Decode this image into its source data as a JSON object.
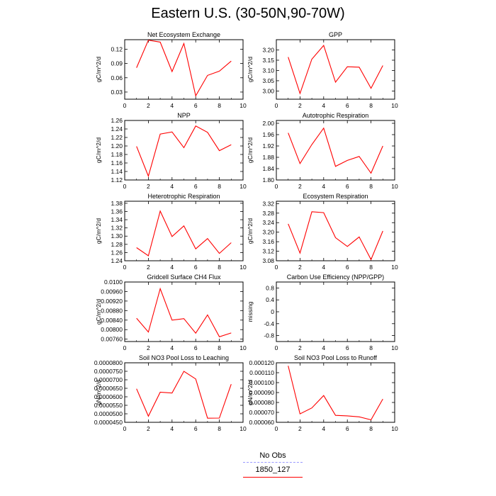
{
  "title": "Eastern U.S. (30-50N,90-70W)",
  "colors": {
    "series": "#ff0000",
    "obs": "#9999ff",
    "axis": "#000000"
  },
  "legend": [
    {
      "label": "No Obs",
      "color": "#9999ff",
      "style": "dashed"
    },
    {
      "label": "1850_127",
      "color": "#ff0000",
      "style": "solid"
    }
  ],
  "chart_data": [
    {
      "type": "line",
      "title": "Net Ecosystem Exchange",
      "ylabel": "gC/m^2/d",
      "xlim": [
        0,
        10
      ],
      "ylim": [
        0.015,
        0.14
      ],
      "xticks": [
        "0",
        "2",
        "4",
        "6",
        "8",
        "10"
      ],
      "yticks": [
        "0.03",
        "0.06",
        "0.09",
        "0.12"
      ],
      "x": [
        1,
        2,
        3,
        4,
        5,
        6,
        7,
        8,
        9
      ],
      "series": [
        {
          "name": "1850_127",
          "values": [
            0.081,
            0.139,
            0.135,
            0.073,
            0.132,
            0.022,
            0.065,
            0.074,
            0.095
          ]
        }
      ]
    },
    {
      "type": "line",
      "title": "GPP",
      "ylabel": "gC/m^2/d",
      "xlim": [
        0,
        10
      ],
      "ylim": [
        2.96,
        3.25
      ],
      "xticks": [
        "0",
        "2",
        "4",
        "6",
        "8",
        "10"
      ],
      "yticks": [
        "3.00",
        "3.05",
        "3.10",
        "3.15",
        "3.20"
      ],
      "x": [
        1,
        2,
        3,
        4,
        5,
        6,
        7,
        8,
        9
      ],
      "series": [
        {
          "name": "1850_127",
          "values": [
            3.165,
            2.988,
            3.155,
            3.222,
            3.043,
            3.118,
            3.116,
            3.013,
            3.124
          ]
        }
      ]
    },
    {
      "type": "line",
      "title": "NPP",
      "ylabel": "gC/m^2/d",
      "xlim": [
        0,
        10
      ],
      "ylim": [
        1.12,
        1.26
      ],
      "xticks": [
        "0",
        "2",
        "4",
        "6",
        "8",
        "10"
      ],
      "yticks": [
        "1.12",
        "1.14",
        "1.16",
        "1.18",
        "1.20",
        "1.22",
        "1.24",
        "1.26"
      ],
      "x": [
        1,
        2,
        3,
        4,
        5,
        6,
        7,
        8,
        9
      ],
      "series": [
        {
          "name": "1850_127",
          "values": [
            1.199,
            1.129,
            1.228,
            1.233,
            1.196,
            1.247,
            1.232,
            1.189,
            1.203
          ]
        }
      ]
    },
    {
      "type": "line",
      "title": "Autotrophic Respiration",
      "ylabel": "gC/m^2/d",
      "xlim": [
        0,
        10
      ],
      "ylim": [
        1.8,
        2.01
      ],
      "xticks": [
        "0",
        "2",
        "4",
        "6",
        "8",
        "10"
      ],
      "yticks": [
        "1.80",
        "1.84",
        "1.88",
        "1.92",
        "1.96",
        "2.00"
      ],
      "x": [
        1,
        2,
        3,
        4,
        5,
        6,
        7,
        8,
        9
      ],
      "series": [
        {
          "name": "1850_127",
          "values": [
            1.966,
            1.858,
            1.925,
            1.983,
            1.848,
            1.869,
            1.883,
            1.824,
            1.92
          ]
        }
      ]
    },
    {
      "type": "line",
      "title": "Heterotrophic Respiration",
      "ylabel": "gC/m^2/d",
      "xlim": [
        0,
        10
      ],
      "ylim": [
        1.24,
        1.385
      ],
      "xticks": [
        "0",
        "2",
        "4",
        "6",
        "8",
        "10"
      ],
      "yticks": [
        "1.24",
        "1.26",
        "1.28",
        "1.30",
        "1.32",
        "1.34",
        "1.36",
        "1.38"
      ],
      "x": [
        1,
        2,
        3,
        4,
        5,
        6,
        7,
        8,
        9
      ],
      "series": [
        {
          "name": "1850_127",
          "values": [
            1.272,
            1.252,
            1.361,
            1.299,
            1.325,
            1.269,
            1.294,
            1.258,
            1.284
          ]
        }
      ]
    },
    {
      "type": "line",
      "title": "Ecosystem Respiration",
      "ylabel": "gC/m^2/d",
      "xlim": [
        0,
        10
      ],
      "ylim": [
        3.08,
        3.33
      ],
      "xticks": [
        "0",
        "2",
        "4",
        "6",
        "8",
        "10"
      ],
      "yticks": [
        "3.08",
        "3.12",
        "3.16",
        "3.20",
        "3.24",
        "3.28",
        "3.32"
      ],
      "x": [
        1,
        2,
        3,
        4,
        5,
        6,
        7,
        8,
        9
      ],
      "series": [
        {
          "name": "1850_127",
          "values": [
            3.235,
            3.112,
            3.286,
            3.282,
            3.177,
            3.14,
            3.18,
            3.085,
            3.205
          ]
        }
      ]
    },
    {
      "type": "line",
      "title": "Gridcell Surface CH4 Flux",
      "ylabel": "gC/m^2/d",
      "xlim": [
        0,
        10
      ],
      "ylim": [
        0.0075,
        0.01
      ],
      "xticks": [
        "0",
        "2",
        "4",
        "6",
        "8",
        "10"
      ],
      "yticks": [
        "0.00760",
        "0.00800",
        "0.00840",
        "0.00880",
        "0.00920",
        "0.00960",
        "0.0100"
      ],
      "x": [
        1,
        2,
        3,
        4,
        5,
        6,
        7,
        8,
        9
      ],
      "series": [
        {
          "name": "1850_127",
          "values": [
            0.00848,
            0.0079,
            0.00972,
            0.0084,
            0.00846,
            0.00785,
            0.00862,
            0.0077,
            0.00786
          ]
        }
      ]
    },
    {
      "type": "line",
      "title": "Carbon Use Efficiency (NPP/GPP)",
      "ylabel": "missing",
      "xlim": [
        0,
        10
      ],
      "ylim": [
        -1.0,
        1.0
      ],
      "xticks": [
        "0",
        "2",
        "4",
        "6",
        "8",
        "10"
      ],
      "yticks": [
        "-0.8",
        "-0.4",
        "0",
        "0.4",
        "0.8"
      ],
      "x": [],
      "series": []
    },
    {
      "type": "line",
      "title": "Soil NO3 Pool Loss to Leaching",
      "ylabel": "gN/m^2/d",
      "xlim": [
        0,
        10
      ],
      "ylim": [
        4.5e-07,
        8e-07
      ],
      "xticks": [
        "0",
        "2",
        "4",
        "6",
        "8",
        "10"
      ],
      "yticks": [
        "0.0000450",
        "0.0000500",
        "0.0000550",
        "0.0000600",
        "0.0000650",
        "0.0000700",
        "0.0000750",
        "0.0000800"
      ],
      "x": [
        1,
        2,
        3,
        4,
        5,
        6,
        7,
        8,
        9
      ],
      "series": [
        {
          "name": "1850_127",
          "values": [
            6.47e-07,
            4.86e-07,
            6.27e-07,
            6.22e-07,
            7.5e-07,
            7.05e-07,
            4.74e-07,
            4.75e-07,
            6.74e-07
          ]
        }
      ]
    },
    {
      "type": "line",
      "title": "Soil NO3 Pool Loss to Runoff",
      "ylabel": "gN/m^2/d",
      "xlim": [
        0,
        10
      ],
      "ylim": [
        6e-07,
        1.2e-06
      ],
      "xticks": [
        "0",
        "2",
        "4",
        "6",
        "8",
        "10"
      ],
      "yticks": [
        "0.000060",
        "0.000070",
        "0.000080",
        "0.000090",
        "0.000100",
        "0.000110",
        "0.000120"
      ],
      "x": [
        1,
        2,
        3,
        4,
        5,
        6,
        7,
        8,
        9
      ],
      "series": [
        {
          "name": "1850_127",
          "values": [
            1.17e-06,
            6.85e-07,
            7.45e-07,
            8.7e-07,
            6.7e-07,
            6.65e-07,
            6.55e-07,
            6.25e-07,
            8.35e-07
          ]
        }
      ]
    }
  ]
}
